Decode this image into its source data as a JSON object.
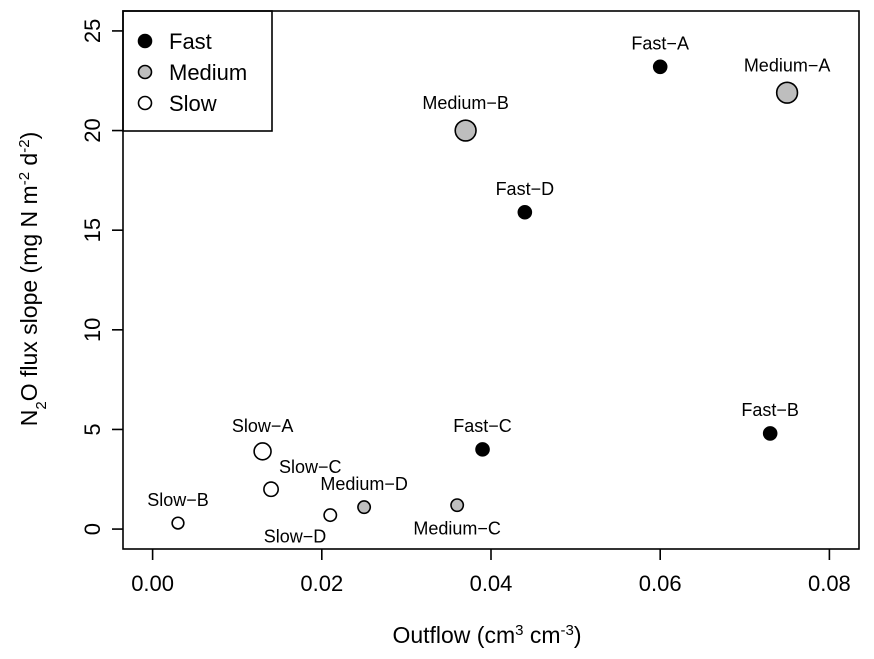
{
  "chart_data": {
    "type": "scatter",
    "xlabel": {
      "base": "Outflow (cm",
      "sup1": "3",
      "mid": " cm",
      "sup2": "-3",
      "end": ")"
    },
    "ylabel": {
      "p1": "N",
      "sub": "2",
      "p2": "O flux slope (mg N m",
      "sup1": "-2",
      "p3": " d",
      "sup2": "-2",
      "p4": ")"
    },
    "xlim": [
      -0.0035,
      0.0835
    ],
    "ylim": [
      -1.0,
      26.0
    ],
    "x_ticks": [
      "0.00",
      "0.02",
      "0.04",
      "0.06",
      "0.08"
    ],
    "x_tick_values": [
      0.0,
      0.02,
      0.04,
      0.06,
      0.08
    ],
    "y_ticks": [
      "0",
      "5",
      "10",
      "15",
      "20",
      "25"
    ],
    "y_tick_values": [
      0,
      5,
      10,
      15,
      20,
      25
    ],
    "legend": {
      "position": "top-left",
      "entries": [
        {
          "label": "Fast",
          "color": "#000000"
        },
        {
          "label": "Medium",
          "color": "#bebebe"
        },
        {
          "label": "Slow",
          "color": "#ffffff"
        }
      ]
    },
    "colors": {
      "Fast": "#000000",
      "Medium": "#bebebe",
      "Slow": "#ffffff"
    },
    "points": [
      {
        "label": "Fast-A",
        "group": "Fast",
        "x": 0.06,
        "y": 23.2,
        "size": 1.0,
        "label_pos": "above"
      },
      {
        "label": "Fast-B",
        "group": "Fast",
        "x": 0.073,
        "y": 4.8,
        "size": 1.0,
        "label_pos": "above"
      },
      {
        "label": "Fast-C",
        "group": "Fast",
        "x": 0.039,
        "y": 4.0,
        "size": 1.0,
        "label_pos": "above"
      },
      {
        "label": "Fast-D",
        "group": "Fast",
        "x": 0.044,
        "y": 15.9,
        "size": 1.0,
        "label_pos": "above"
      },
      {
        "label": "Medium-A",
        "group": "Medium",
        "x": 0.075,
        "y": 21.9,
        "size": 1.6,
        "label_pos": "above"
      },
      {
        "label": "Medium-B",
        "group": "Medium",
        "x": 0.037,
        "y": 20.0,
        "size": 1.6,
        "label_pos": "above"
      },
      {
        "label": "Medium-C",
        "group": "Medium",
        "x": 0.036,
        "y": 1.2,
        "size": 0.95,
        "label_pos": "below"
      },
      {
        "label": "Medium-D",
        "group": "Medium",
        "x": 0.025,
        "y": 1.1,
        "size": 0.95,
        "label_pos": "above"
      },
      {
        "label": "Slow-A",
        "group": "Slow",
        "x": 0.013,
        "y": 3.9,
        "size": 1.3,
        "label_pos": "above"
      },
      {
        "label": "Slow-B",
        "group": "Slow",
        "x": 0.003,
        "y": 0.3,
        "size": 0.9,
        "label_pos": "above"
      },
      {
        "label": "Slow-C",
        "group": "Slow",
        "x": 0.014,
        "y": 2.0,
        "size": 1.1,
        "label_pos": "above-right"
      },
      {
        "label": "Slow-D",
        "group": "Slow",
        "x": 0.021,
        "y": 0.7,
        "size": 0.95,
        "label_pos": "below-left"
      }
    ]
  }
}
